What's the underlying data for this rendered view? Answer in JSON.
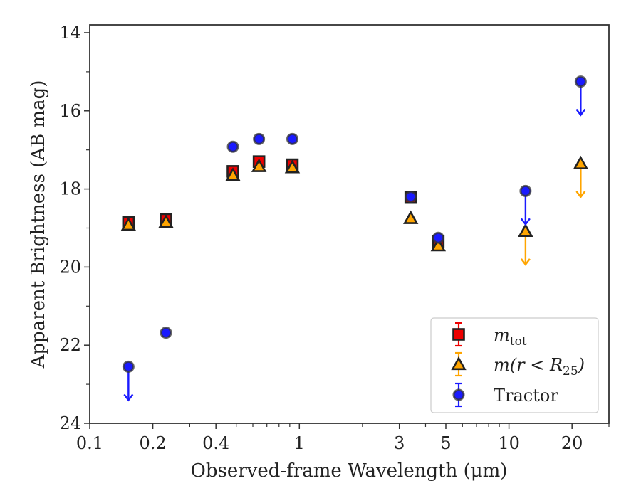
{
  "chart_data": {
    "type": "scatter",
    "xlabel": "Observed-frame Wavelength (μm)",
    "ylabel": "Apparent Brightness (AB mag)",
    "xscale": "log",
    "xlim": [
      0.1,
      30
    ],
    "ylim": [
      24,
      13.8
    ],
    "y_inverted": true,
    "x_ticks": [
      {
        "value": 0.1,
        "label": "0.1"
      },
      {
        "value": 0.2,
        "label": "0.2"
      },
      {
        "value": 0.4,
        "label": "0.4"
      },
      {
        "value": 1,
        "label": "1"
      },
      {
        "value": 3,
        "label": "3"
      },
      {
        "value": 5,
        "label": "5"
      },
      {
        "value": 10,
        "label": "10"
      },
      {
        "value": 20,
        "label": "20"
      }
    ],
    "x_minor_ticks": [
      0.3,
      0.5,
      0.6,
      0.7,
      0.8,
      0.9,
      2,
      4,
      6,
      7,
      8,
      9,
      30
    ],
    "y_ticks": [
      14,
      16,
      18,
      20,
      22,
      24
    ],
    "y_minor_ticks": [
      15,
      17,
      19,
      21,
      23
    ],
    "grid": false,
    "legend_position": "lower-right",
    "series": [
      {
        "name": "m_tot",
        "legend_base": "m",
        "legend_sub": "tot",
        "marker": "square",
        "color": "#ee0000",
        "points": [
          {
            "x": 0.153,
            "y": 18.85
          },
          {
            "x": 0.231,
            "y": 18.78
          },
          {
            "x": 0.482,
            "y": 17.55
          },
          {
            "x": 0.642,
            "y": 17.3
          },
          {
            "x": 0.926,
            "y": 17.38
          },
          {
            "x": 3.4,
            "y": 18.22
          },
          {
            "x": 4.6,
            "y": 19.35
          }
        ]
      },
      {
        "name": "m(r < R25)",
        "legend_base": "m(r < R",
        "legend_sub": "25",
        "legend_tail": ")",
        "marker": "triangle",
        "color": "#ffa500",
        "points": [
          {
            "x": 0.153,
            "y": 18.92
          },
          {
            "x": 0.231,
            "y": 18.85
          },
          {
            "x": 0.482,
            "y": 17.65
          },
          {
            "x": 0.642,
            "y": 17.42
          },
          {
            "x": 0.926,
            "y": 17.45
          },
          {
            "x": 3.4,
            "y": 18.75
          },
          {
            "x": 4.6,
            "y": 19.45
          },
          {
            "x": 12.0,
            "y": 19.08,
            "upper_limit": true
          },
          {
            "x": 22.0,
            "y": 17.35,
            "upper_limit": true
          }
        ]
      },
      {
        "name": "Tractor",
        "marker": "circle",
        "color": "#1a1aff",
        "points": [
          {
            "x": 0.153,
            "y": 22.55,
            "upper_limit": true
          },
          {
            "x": 0.231,
            "y": 21.68
          },
          {
            "x": 0.482,
            "y": 16.92
          },
          {
            "x": 0.642,
            "y": 16.72
          },
          {
            "x": 0.926,
            "y": 16.72
          },
          {
            "x": 3.4,
            "y": 18.2
          },
          {
            "x": 4.6,
            "y": 19.25
          },
          {
            "x": 12.0,
            "y": 18.05,
            "upper_limit": true
          },
          {
            "x": 22.0,
            "y": 15.25,
            "upper_limit": true
          }
        ]
      }
    ]
  }
}
